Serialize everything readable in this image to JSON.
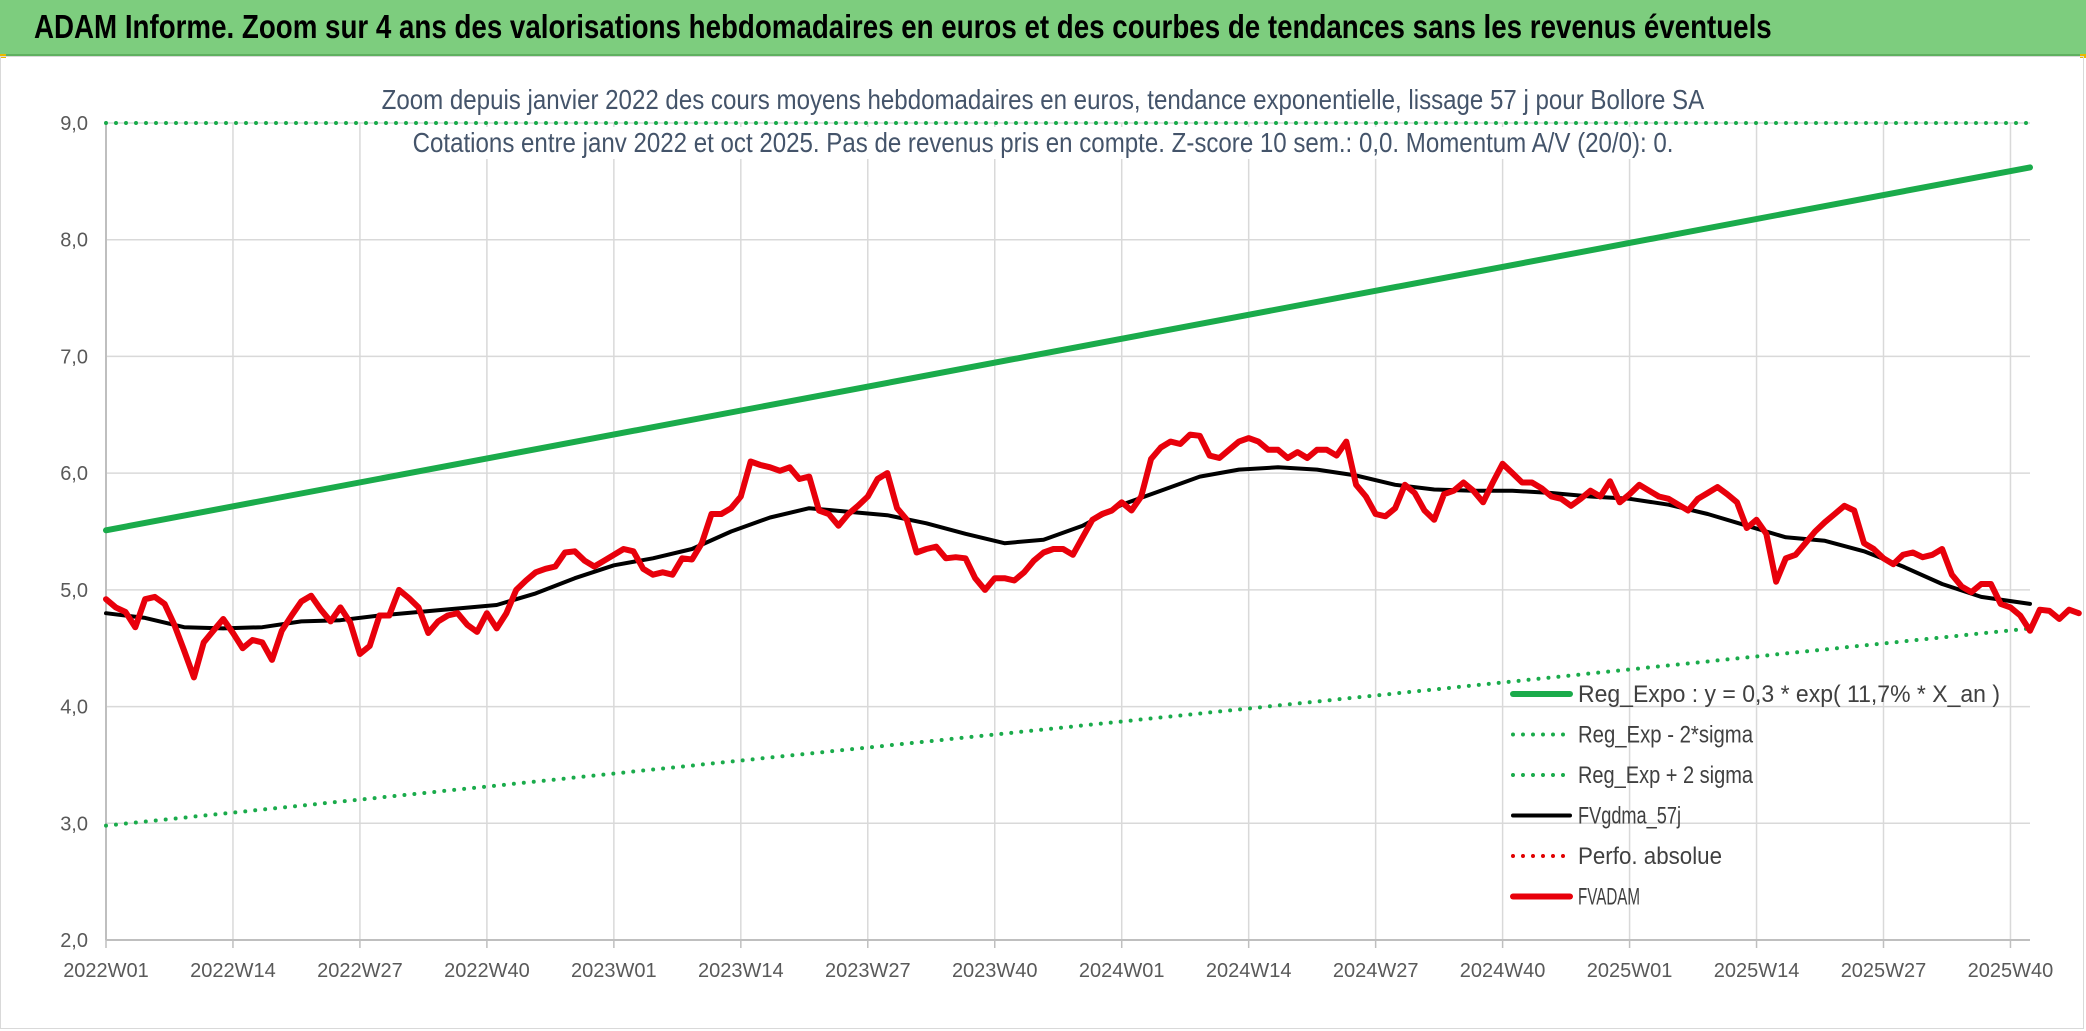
{
  "header": {
    "title": "ADAM Informe. Zoom sur 4 ans des valorisations hebdomadaires en euros et des courbes de tendances sans les revenus éventuels"
  },
  "chart_data": {
    "type": "line",
    "title": "Zoom depuis janvier 2022 des cours moyens hebdomadaires en euros, tendance exponentielle, lissage 57 j pour Bollore SA",
    "subtitle": "Cotations entre janv 2022 et oct 2025. Pas de revenus pris en compte. Z-score 10 sem.: 0,0. Momentum A/V (20/0): 0.",
    "xlabel": "",
    "ylabel": "",
    "ylim": [
      2.0,
      9.0
    ],
    "y_ticks": [
      "2,0",
      "3,0",
      "4,0",
      "5,0",
      "6,0",
      "7,0",
      "8,0",
      "9,0"
    ],
    "x_range": [
      1,
      198
    ],
    "x_ticks": [
      {
        "x": 1,
        "label": "2022W01"
      },
      {
        "x": 14,
        "label": "2022W14"
      },
      {
        "x": 27,
        "label": "2022W27"
      },
      {
        "x": 40,
        "label": "2022W40"
      },
      {
        "x": 53,
        "label": "2023W01"
      },
      {
        "x": 66,
        "label": "2023W14"
      },
      {
        "x": 79,
        "label": "2023W27"
      },
      {
        "x": 92,
        "label": "2023W40"
      },
      {
        "x": 105,
        "label": "2024W01"
      },
      {
        "x": 118,
        "label": "2024W14"
      },
      {
        "x": 131,
        "label": "2024W27"
      },
      {
        "x": 144,
        "label": "2024W40"
      },
      {
        "x": 157,
        "label": "2025W01"
      },
      {
        "x": 170,
        "label": "2025W14"
      },
      {
        "x": 183,
        "label": "2025W27"
      },
      {
        "x": 196,
        "label": "2025W40"
      }
    ],
    "grid": true,
    "legend_position": "bottom-right",
    "series": [
      {
        "name": "Reg_Expo : y = 0,3 * exp( 11,7% *  X_an )",
        "color": "#1aab4b",
        "style": "solid",
        "width": 6,
        "points": [
          [
            1,
            5.51
          ],
          [
            198,
            8.62
          ]
        ]
      },
      {
        "name": "Reg_Exp - 2*sigma",
        "color": "#1aab4b",
        "style": "dotted",
        "width": 4,
        "points": [
          [
            1,
            2.98
          ],
          [
            198,
            4.67
          ]
        ]
      },
      {
        "name": "Reg_Exp + 2 sigma",
        "color": "#1aab4b",
        "style": "dotted",
        "width": 4,
        "points": [
          [
            1,
            9.0
          ],
          [
            198,
            9.0
          ]
        ]
      },
      {
        "name": "FVgdma_57j",
        "color": "#000000",
        "style": "solid",
        "width": 4,
        "points": [
          [
            1,
            4.8
          ],
          [
            5,
            4.76
          ],
          [
            9,
            4.68
          ],
          [
            13,
            4.67
          ],
          [
            17,
            4.68
          ],
          [
            21,
            4.73
          ],
          [
            25,
            4.74
          ],
          [
            29,
            4.78
          ],
          [
            33,
            4.81
          ],
          [
            37,
            4.84
          ],
          [
            41,
            4.87
          ],
          [
            45,
            4.97
          ],
          [
            49,
            5.1
          ],
          [
            53,
            5.21
          ],
          [
            57,
            5.27
          ],
          [
            61,
            5.35
          ],
          [
            65,
            5.5
          ],
          [
            69,
            5.62
          ],
          [
            73,
            5.7
          ],
          [
            77,
            5.67
          ],
          [
            81,
            5.64
          ],
          [
            85,
            5.57
          ],
          [
            89,
            5.48
          ],
          [
            93,
            5.4
          ],
          [
            97,
            5.43
          ],
          [
            101,
            5.55
          ],
          [
            105,
            5.73
          ],
          [
            109,
            5.85
          ],
          [
            113,
            5.97
          ],
          [
            117,
            6.03
          ],
          [
            121,
            6.05
          ],
          [
            125,
            6.03
          ],
          [
            129,
            5.98
          ],
          [
            133,
            5.9
          ],
          [
            137,
            5.86
          ],
          [
            141,
            5.85
          ],
          [
            145,
            5.85
          ],
          [
            149,
            5.83
          ],
          [
            153,
            5.8
          ],
          [
            157,
            5.78
          ],
          [
            161,
            5.73
          ],
          [
            165,
            5.65
          ],
          [
            169,
            5.55
          ],
          [
            173,
            5.45
          ],
          [
            177,
            5.42
          ],
          [
            181,
            5.33
          ],
          [
            185,
            5.2
          ],
          [
            189,
            5.05
          ],
          [
            193,
            4.94
          ],
          [
            198,
            4.88
          ]
        ]
      },
      {
        "name": "Perfo. absolue",
        "color": "#e00000",
        "style": "dotted",
        "width": 4,
        "points": []
      },
      {
        "name": "FVADAM",
        "color": "#e8000b",
        "style": "solid",
        "width": 6,
        "points": [
          [
            1,
            4.92
          ],
          [
            2,
            4.85
          ],
          [
            3,
            4.81
          ],
          [
            4,
            4.68
          ],
          [
            5,
            4.92
          ],
          [
            6,
            4.94
          ],
          [
            7,
            4.88
          ],
          [
            8,
            4.7
          ],
          [
            9,
            4.48
          ],
          [
            10,
            4.25
          ],
          [
            11,
            4.55
          ],
          [
            12,
            4.65
          ],
          [
            13,
            4.75
          ],
          [
            14,
            4.63
          ],
          [
            15,
            4.5
          ],
          [
            16,
            4.57
          ],
          [
            17,
            4.55
          ],
          [
            18,
            4.4
          ],
          [
            19,
            4.65
          ],
          [
            20,
            4.78
          ],
          [
            21,
            4.9
          ],
          [
            22,
            4.95
          ],
          [
            23,
            4.83
          ],
          [
            24,
            4.73
          ],
          [
            25,
            4.85
          ],
          [
            26,
            4.72
          ],
          [
            27,
            4.45
          ],
          [
            28,
            4.52
          ],
          [
            29,
            4.78
          ],
          [
            30,
            4.78
          ],
          [
            31,
            5.0
          ],
          [
            32,
            4.93
          ],
          [
            33,
            4.85
          ],
          [
            34,
            4.63
          ],
          [
            35,
            4.73
          ],
          [
            36,
            4.78
          ],
          [
            37,
            4.8
          ],
          [
            38,
            4.7
          ],
          [
            39,
            4.64
          ],
          [
            40,
            4.8
          ],
          [
            41,
            4.67
          ],
          [
            42,
            4.8
          ],
          [
            43,
            5.0
          ],
          [
            44,
            5.08
          ],
          [
            45,
            5.15
          ],
          [
            46,
            5.18
          ],
          [
            47,
            5.2
          ],
          [
            48,
            5.32
          ],
          [
            49,
            5.33
          ],
          [
            50,
            5.25
          ],
          [
            51,
            5.2
          ],
          [
            52,
            5.25
          ],
          [
            53,
            5.3
          ],
          [
            54,
            5.35
          ],
          [
            55,
            5.33
          ],
          [
            56,
            5.18
          ],
          [
            57,
            5.13
          ],
          [
            58,
            5.15
          ],
          [
            59,
            5.13
          ],
          [
            60,
            5.27
          ],
          [
            61,
            5.26
          ],
          [
            62,
            5.4
          ],
          [
            63,
            5.65
          ],
          [
            64,
            5.65
          ],
          [
            65,
            5.7
          ],
          [
            66,
            5.8
          ],
          [
            67,
            6.1
          ],
          [
            68,
            6.07
          ],
          [
            69,
            6.05
          ],
          [
            70,
            6.02
          ],
          [
            71,
            6.05
          ],
          [
            72,
            5.95
          ],
          [
            73,
            5.97
          ],
          [
            74,
            5.68
          ],
          [
            75,
            5.65
          ],
          [
            76,
            5.55
          ],
          [
            77,
            5.65
          ],
          [
            78,
            5.72
          ],
          [
            79,
            5.8
          ],
          [
            80,
            5.95
          ],
          [
            81,
            6.0
          ],
          [
            82,
            5.7
          ],
          [
            83,
            5.6
          ],
          [
            84,
            5.32
          ],
          [
            85,
            5.35
          ],
          [
            86,
            5.37
          ],
          [
            87,
            5.27
          ],
          [
            88,
            5.28
          ],
          [
            89,
            5.27
          ],
          [
            90,
            5.1
          ],
          [
            91,
            5.0
          ],
          [
            92,
            5.1
          ],
          [
            93,
            5.1
          ],
          [
            94,
            5.08
          ],
          [
            95,
            5.15
          ],
          [
            96,
            5.25
          ],
          [
            97,
            5.32
          ],
          [
            98,
            5.35
          ],
          [
            99,
            5.35
          ],
          [
            100,
            5.3
          ],
          [
            101,
            5.45
          ],
          [
            102,
            5.6
          ],
          [
            103,
            5.65
          ],
          [
            104,
            5.68
          ],
          [
            105,
            5.75
          ],
          [
            106,
            5.68
          ],
          [
            107,
            5.8
          ],
          [
            108,
            6.12
          ],
          [
            109,
            6.22
          ],
          [
            110,
            6.27
          ],
          [
            111,
            6.25
          ],
          [
            112,
            6.33
          ],
          [
            113,
            6.32
          ],
          [
            114,
            6.15
          ],
          [
            115,
            6.13
          ],
          [
            116,
            6.2
          ],
          [
            117,
            6.27
          ],
          [
            118,
            6.3
          ],
          [
            119,
            6.27
          ],
          [
            120,
            6.2
          ],
          [
            121,
            6.2
          ],
          [
            122,
            6.13
          ],
          [
            123,
            6.18
          ],
          [
            124,
            6.13
          ],
          [
            125,
            6.2
          ],
          [
            126,
            6.2
          ],
          [
            127,
            6.15
          ],
          [
            128,
            6.27
          ],
          [
            129,
            5.9
          ],
          [
            130,
            5.8
          ],
          [
            131,
            5.65
          ],
          [
            132,
            5.63
          ],
          [
            133,
            5.7
          ],
          [
            134,
            5.9
          ],
          [
            135,
            5.83
          ],
          [
            136,
            5.68
          ],
          [
            137,
            5.6
          ],
          [
            138,
            5.82
          ],
          [
            139,
            5.85
          ],
          [
            140,
            5.92
          ],
          [
            141,
            5.85
          ],
          [
            142,
            5.75
          ],
          [
            143,
            5.92
          ],
          [
            144,
            6.08
          ],
          [
            145,
            6.0
          ],
          [
            146,
            5.92
          ],
          [
            147,
            5.92
          ],
          [
            148,
            5.87
          ],
          [
            149,
            5.8
          ],
          [
            150,
            5.78
          ],
          [
            151,
            5.72
          ],
          [
            152,
            5.78
          ],
          [
            153,
            5.85
          ],
          [
            154,
            5.8
          ],
          [
            155,
            5.93
          ],
          [
            156,
            5.75
          ],
          [
            157,
            5.82
          ],
          [
            158,
            5.9
          ],
          [
            159,
            5.85
          ],
          [
            160,
            5.8
          ],
          [
            161,
            5.78
          ],
          [
            162,
            5.73
          ],
          [
            163,
            5.68
          ],
          [
            164,
            5.78
          ],
          [
            165,
            5.83
          ],
          [
            166,
            5.88
          ],
          [
            167,
            5.82
          ],
          [
            168,
            5.75
          ],
          [
            169,
            5.53
          ],
          [
            170,
            5.6
          ],
          [
            171,
            5.48
          ],
          [
            172,
            5.07
          ],
          [
            173,
            5.27
          ],
          [
            174,
            5.3
          ],
          [
            175,
            5.4
          ],
          [
            176,
            5.5
          ],
          [
            177,
            5.58
          ],
          [
            178,
            5.65
          ],
          [
            179,
            5.72
          ],
          [
            180,
            5.68
          ],
          [
            181,
            5.4
          ],
          [
            182,
            5.35
          ],
          [
            183,
            5.27
          ],
          [
            184,
            5.22
          ],
          [
            185,
            5.3
          ],
          [
            186,
            5.32
          ],
          [
            187,
            5.28
          ],
          [
            188,
            5.3
          ],
          [
            189,
            5.35
          ],
          [
            190,
            5.13
          ],
          [
            191,
            5.03
          ],
          [
            192,
            4.98
          ],
          [
            193,
            5.05
          ],
          [
            194,
            5.05
          ],
          [
            195,
            4.88
          ],
          [
            196,
            4.85
          ],
          [
            197,
            4.78
          ],
          [
            198,
            4.65
          ],
          [
            199,
            4.83
          ],
          [
            200,
            4.82
          ],
          [
            201,
            4.75
          ],
          [
            202,
            4.83
          ],
          [
            203,
            4.8
          ]
        ]
      }
    ]
  }
}
